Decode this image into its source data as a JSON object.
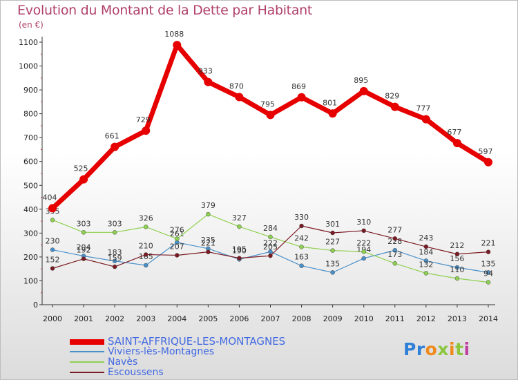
{
  "chart_data": {
    "type": "line",
    "title": "Evolution du Montant de la Dette par Habitant",
    "subtitle": "(en €)",
    "x": [
      "2000",
      "2001",
      "2002",
      "2003",
      "2004",
      "2005",
      "2006",
      "2007",
      "2008",
      "2009",
      "2010",
      "2011",
      "2012",
      "2013",
      "2014"
    ],
    "ylim": [
      0,
      1100
    ],
    "yticks": [
      "0",
      "100",
      "200",
      "300",
      "400",
      "500",
      "600",
      "700",
      "800",
      "900",
      "1000",
      "1100"
    ],
    "grid": false,
    "legend_position": "bottom-left",
    "series": [
      {
        "name": "SAINT-AFFRIQUE-LES-MONTAGNES",
        "color": "#e60000",
        "values": [
          404,
          525,
          661,
          729,
          1088,
          933,
          870,
          795,
          869,
          801,
          895,
          829,
          777,
          677,
          597
        ]
      },
      {
        "name": "Viviers-lès-Montagnes",
        "color": "#4a90c8",
        "values": [
          230,
          204,
          183,
          165,
          261,
          235,
          190,
          222,
          163,
          135,
          194,
          228,
          184,
          156,
          135
        ]
      },
      {
        "name": "Navès",
        "color": "#8ed04f",
        "values": [
          355,
          303,
          303,
          326,
          276,
          379,
          327,
          284,
          242,
          227,
          222,
          173,
          132,
          110,
          94
        ]
      },
      {
        "name": "Escoussens",
        "color": "#7a1a22",
        "values": [
          152,
          192,
          159,
          210,
          207,
          221,
          195,
          205,
          330,
          301,
          310,
          277,
          243,
          212,
          221
        ]
      }
    ]
  },
  "brand": {
    "letters": [
      "P",
      "r",
      "o",
      "x",
      "i",
      "t",
      "i"
    ],
    "colors": [
      "#2e7fd8",
      "#2e7fd8",
      "#f08a1c",
      "#8cc63f",
      "#f08a1c",
      "#8cc63f",
      "#c040a0"
    ]
  }
}
